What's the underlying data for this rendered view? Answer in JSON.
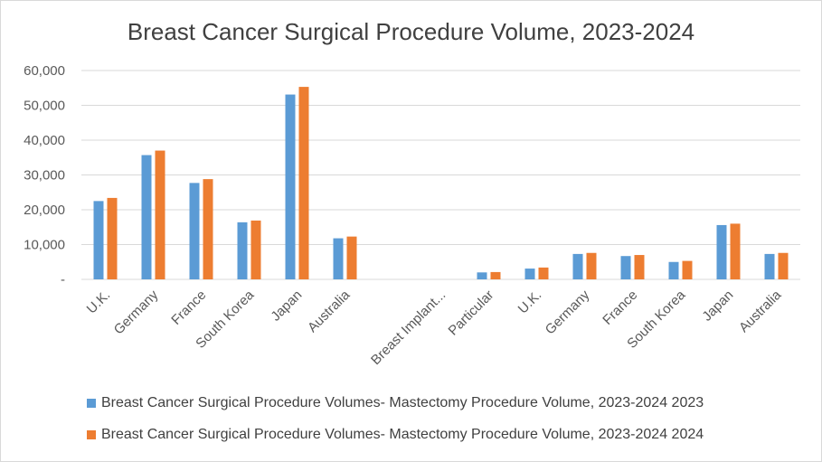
{
  "chart_data": {
    "type": "bar",
    "title": "Breast Cancer Surgical Procedure Volume, 2023-2024",
    "xlabel": "",
    "ylabel": "",
    "ylim": [
      0,
      60000
    ],
    "yticks": [
      0,
      10000,
      20000,
      30000,
      40000,
      50000,
      60000
    ],
    "ytick_labels": [
      "-",
      "10,000",
      "20,000",
      "30,000",
      "40,000",
      "50,000",
      "60,000"
    ],
    "grid": true,
    "legend_position": "bottom",
    "categories": [
      "U.K.",
      "Germany",
      "France",
      "South Korea",
      "Japan",
      "Australia",
      "",
      "Breast Implant...",
      "Particular",
      "U.K.",
      "Germany",
      "France",
      "South Korea",
      "Japan",
      "Australia"
    ],
    "series": [
      {
        "name": "Breast Cancer Surgical Procedure Volumes- Mastectomy Procedure Volume, 2023-2024 2023",
        "color": "#5b9bd5",
        "values": [
          22500,
          35700,
          27700,
          16400,
          53100,
          11800,
          null,
          null,
          2000,
          3100,
          7300,
          6700,
          5000,
          15600,
          7300
        ]
      },
      {
        "name": "Breast Cancer Surgical Procedure Volumes- Mastectomy Procedure Volume, 2023-2024 2024",
        "color": "#ed7d31",
        "values": [
          23400,
          37000,
          28800,
          16900,
          55300,
          12300,
          null,
          null,
          2100,
          3400,
          7600,
          7000,
          5300,
          16000,
          7600
        ]
      }
    ]
  }
}
